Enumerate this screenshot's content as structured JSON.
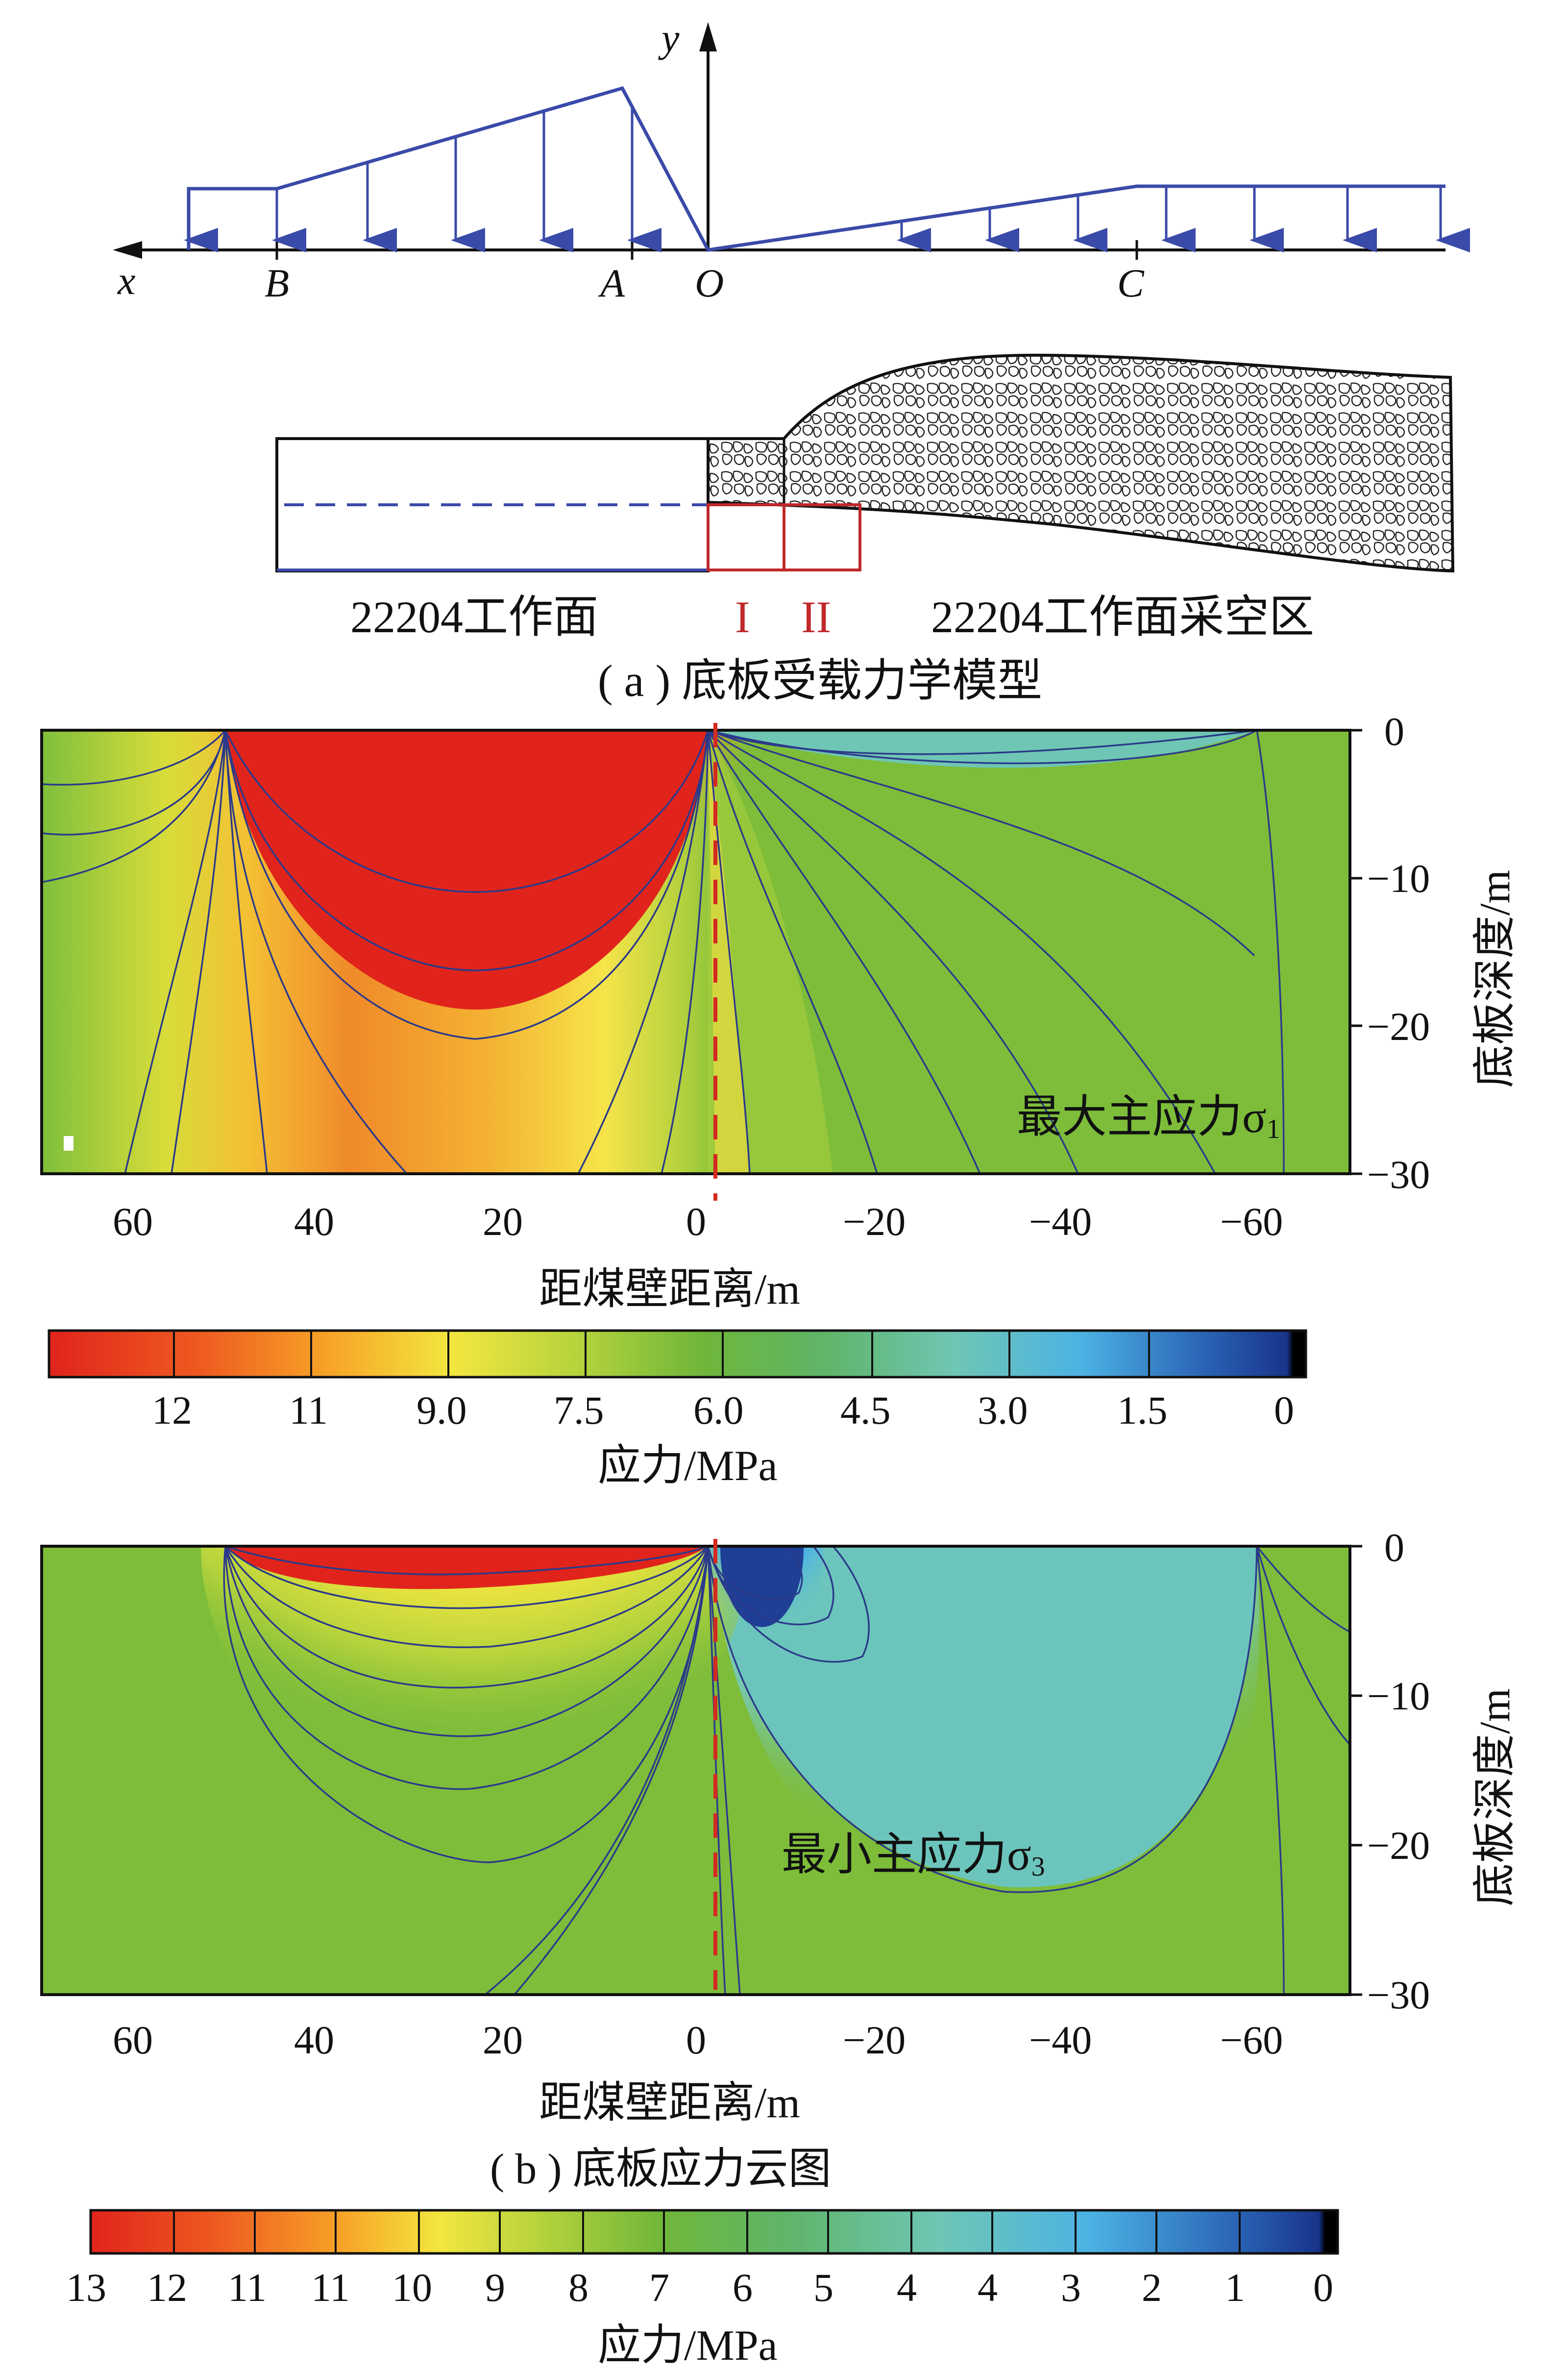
{
  "model": {
    "axis_y": "y",
    "axis_x": "x",
    "point_b": "B",
    "point_a": "A",
    "point_o": "O",
    "point_c": "C",
    "label_face": "22204工作面",
    "label_zone1": "I",
    "label_zone2": "II",
    "label_goaf": "22204工作面采空区",
    "caption": "( a ) 底板受载力学模型"
  },
  "plot1": {
    "label": "最大主应力σ",
    "label_sub": "1",
    "xlabel": "距煤壁距离/m",
    "ylabel": "底板深度/m",
    "xticks": [
      "60",
      "40",
      "20",
      "0",
      "−20",
      "−40",
      "−60"
    ],
    "yticks": [
      "0",
      "−10",
      "−20",
      "−30"
    ],
    "colorbar_labels": [
      "12",
      "11",
      "9.0",
      "7.5",
      "6.0",
      "4.5",
      "3.0",
      "1.5",
      "0"
    ],
    "colorbar_title": "应力/MPa"
  },
  "plot2": {
    "label": "最小主应力σ",
    "label_sub": "3",
    "xlabel": "距煤壁距离/m",
    "ylabel": "底板深度/m",
    "xticks": [
      "60",
      "40",
      "20",
      "0",
      "−20",
      "−40",
      "−60"
    ],
    "yticks": [
      "0",
      "−10",
      "−20",
      "−30"
    ],
    "caption": "( b ) 底板应力云图",
    "colorbar_labels": [
      "13",
      "12",
      "11",
      "11",
      "10",
      "9",
      "8",
      "7",
      "6",
      "5",
      "4",
      "4",
      "3",
      "2",
      "1",
      "0"
    ],
    "colorbar_title": "应力/MPa"
  },
  "colors": {
    "load_line": "#3a4aa8",
    "contour": "#2b3a8a",
    "red_marker": "#d42a20"
  }
}
